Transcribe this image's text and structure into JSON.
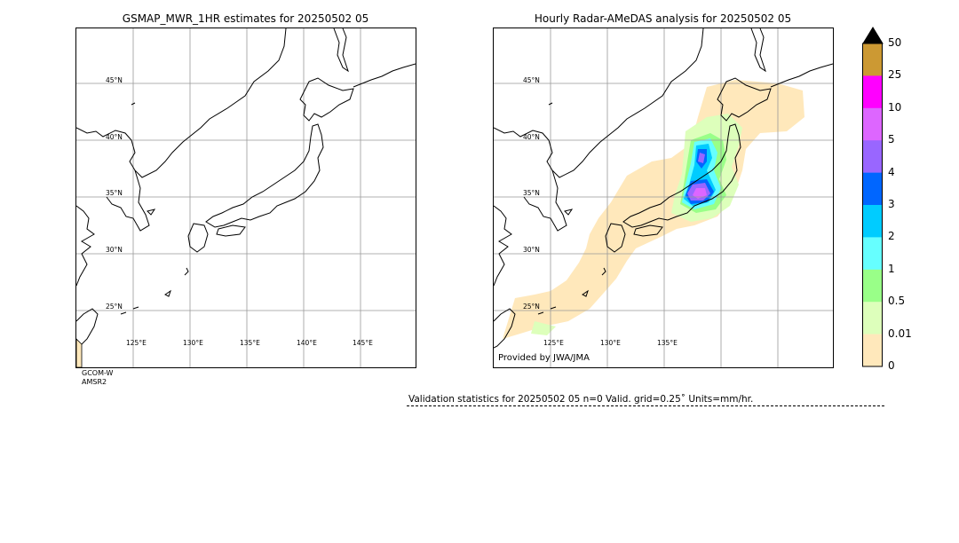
{
  "left_panel": {
    "title": "GSMAP_MWR_1HR estimates for 20250502 05",
    "lat_labels": [
      "45°N",
      "40°N",
      "35°N",
      "30°N",
      "25°N"
    ],
    "lon_labels": [
      "125°E",
      "130°E",
      "135°E",
      "140°E",
      "145°E"
    ],
    "satellite_note": [
      "GCOM-W",
      "AMSR2"
    ]
  },
  "right_panel": {
    "title": "Hourly Radar-AMeDAS analysis for 20250502 05",
    "lat_labels": [
      "45°N",
      "40°N",
      "35°N",
      "30°N",
      "25°N"
    ],
    "lon_labels": [
      "125°E",
      "130°E",
      "135°E"
    ],
    "provided_by": "Provided by JWA/JMA"
  },
  "colorbar": {
    "labels": [
      "50",
      "25",
      "10",
      "5",
      "4",
      "3",
      "2",
      "1",
      "0.5",
      "0.01",
      "0"
    ],
    "colors": [
      "#cc9933",
      "#ff00ff",
      "#dd66ff",
      "#9966ff",
      "#0066ff",
      "#00ccff",
      "#66ffff",
      "#99ff88",
      "#ddffbb",
      "#ffe8bb"
    ],
    "extend_color": "#000000"
  },
  "validation": {
    "text": "Validation statistics for 20250502 05  n=0 Valid. grid=0.25˚ Units=mm/hr."
  }
}
